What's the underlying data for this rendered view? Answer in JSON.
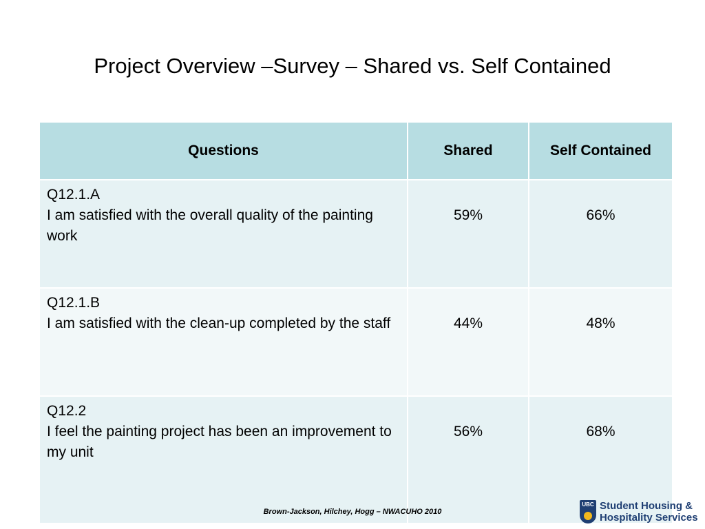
{
  "slide": {
    "title": "Project Overview –Survey – Shared vs. Self Contained"
  },
  "table": {
    "headers": {
      "questions": "Questions",
      "shared": "Shared",
      "self_contained": "Self Contained"
    },
    "rows": [
      {
        "id": "Q12.1.A",
        "text": "I am satisfied with the overall quality of the painting work",
        "shared": "59%",
        "self_contained": "66%"
      },
      {
        "id": "Q12.1.B",
        "text": "I am satisfied with the clean-up completed by the staff",
        "shared": "44%",
        "self_contained": "48%"
      },
      {
        "id": "Q12.2",
        "text": "I feel the painting project has been an improvement to my unit",
        "shared": "56%",
        "self_contained": "68%"
      }
    ]
  },
  "footer": {
    "citation": "Brown-Jackson, Hilchey, Hogg – NWACUHO 2010",
    "logo": {
      "crest_text": "UBC",
      "line1": "Student Housing &",
      "line2": "Hospitality Services",
      "crest_icon": "ubc-crest-icon"
    }
  },
  "colors": {
    "header_bg": "#b7dde2",
    "row_bg_alt1": "#e6f2f4",
    "row_bg_alt2": "#f2f8f9",
    "logo_blue": "#1f3f73",
    "logo_gold": "#f2b81e"
  }
}
